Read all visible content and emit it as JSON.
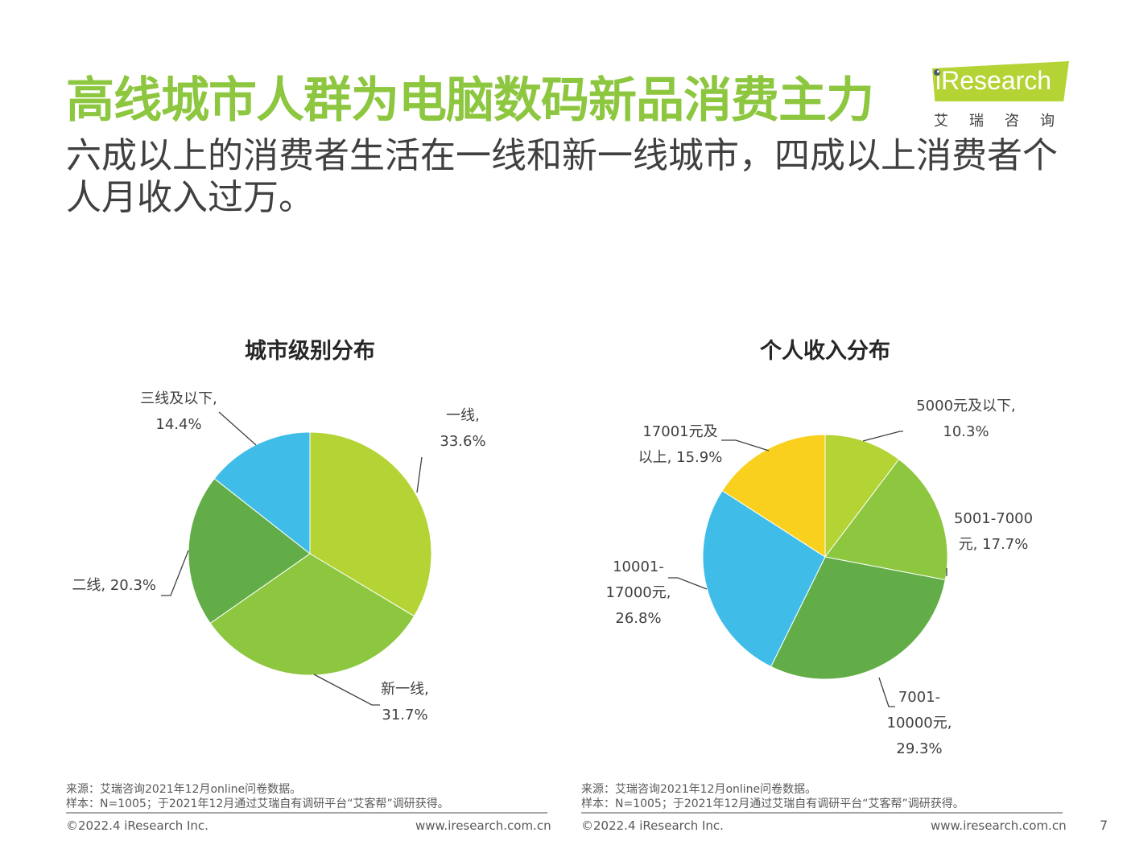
{
  "header": {
    "title": "高线城市人群为电脑数码新品消费主力",
    "subtitle": "六成以上的消费者生活在一线和新一线城市，四成以上消费者个人月收入过万。"
  },
  "logo": {
    "text": "iResearch",
    "cn": "艾瑞咨询"
  },
  "chart_data": [
    {
      "type": "pie",
      "title": "城市级别分布",
      "slices": [
        {
          "name": "一线",
          "value": 33.6,
          "color": "#b4d334",
          "label": [
            "一线,",
            "33.6%"
          ]
        },
        {
          "name": "新一线",
          "value": 31.7,
          "color": "#8dc63f",
          "label": [
            "新一线,",
            "31.7%"
          ]
        },
        {
          "name": "二线",
          "value": 20.3,
          "color": "#62ad47",
          "label": [
            "二线, 20.3%"
          ]
        },
        {
          "name": "三线及以下",
          "value": 14.4,
          "color": "#3fbde8",
          "label": [
            "三线及以下,",
            "14.4%"
          ]
        }
      ]
    },
    {
      "type": "pie",
      "title": "个人收入分布",
      "slices": [
        {
          "name": "5000元及以下",
          "value": 10.3,
          "color": "#b4d334",
          "label": [
            "5000元及以下,",
            "10.3%"
          ]
        },
        {
          "name": "5001-7000元",
          "value": 17.7,
          "color": "#8dc63f",
          "label": [
            "5001-7000",
            "元, 17.7%"
          ]
        },
        {
          "name": "7001-10000元",
          "value": 29.3,
          "color": "#62ad47",
          "label": [
            "7001-",
            "10000元,",
            "29.3%"
          ]
        },
        {
          "name": "10001-17000元",
          "value": 26.8,
          "color": "#3fbde8",
          "label": [
            "10001-",
            "17000元,",
            "26.8%"
          ]
        },
        {
          "name": "17001元及以上",
          "value": 15.9,
          "color": "#fad01e",
          "label": [
            "17001元及",
            "以上, 15.9%"
          ]
        }
      ]
    }
  ],
  "footer": {
    "source_line1": "来源：艾瑞咨询2021年12月online问卷数据。",
    "source_line2": "样本：N=1005；于2021年12月通过艾瑞自有调研平台“艾客帮”调研获得。",
    "copyright": "©2022.4 iResearch Inc.",
    "website": "www.iresearch.com.cn",
    "page_number": "7"
  }
}
